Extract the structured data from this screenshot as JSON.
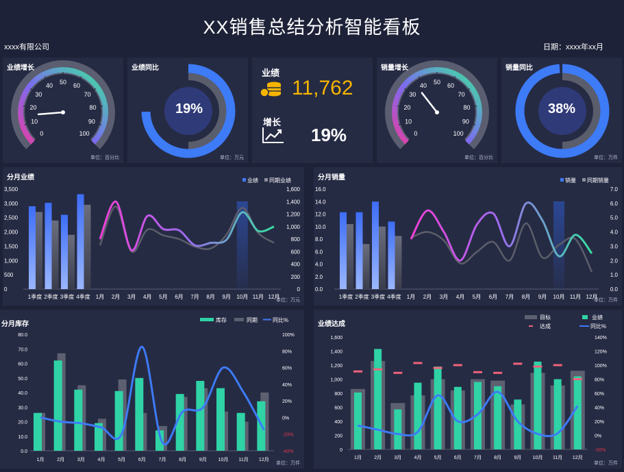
{
  "header": {
    "title": "XX销售总结分析智能看板",
    "company": "xxxx有限公司",
    "date": "日期：xxxx年xx月"
  },
  "colors": {
    "bg": "#1e2238",
    "panel": "#262b44",
    "blue": "#3d7bf7",
    "gray": "#5d6070",
    "teal": "#2fd3a6",
    "gold": "#f7b500",
    "pink": "#f0637a",
    "neg": "#e0364c"
  },
  "panels": {
    "gauge1": {
      "title": "业绩增长",
      "unit": "单位：百分比",
      "ticks": [
        "0",
        "10",
        "20",
        "30",
        "40",
        "50",
        "60",
        "70",
        "80",
        "90",
        "100"
      ],
      "value": 15
    },
    "ring1": {
      "title": "业绩同比",
      "unit": "单位：万元",
      "value_text": "19%",
      "fraction": 0.19
    },
    "kpi": {
      "label1": "业绩",
      "value1": "11,762",
      "label2": "增长",
      "value2": "19%"
    },
    "gauge2": {
      "title": "销量增长",
      "unit": "单位：百分比",
      "ticks": [
        "0",
        "10",
        "20",
        "30",
        "40",
        "50",
        "60",
        "70",
        "80",
        "90",
        "100"
      ],
      "value": 36
    },
    "ring2": {
      "title": "销量同比",
      "unit": "单位：万件",
      "value_text": "38%",
      "fraction": 0.38
    },
    "monthly_perf": {
      "title": "分月业绩",
      "unit": "单位：万元",
      "legend": [
        "业绩",
        "同期业绩"
      ]
    },
    "monthly_sales": {
      "title": "分月销量",
      "unit": "单位：万件",
      "legend": [
        "销量",
        "同期销量"
      ]
    },
    "inventory": {
      "title": "分月库存",
      "unit": "单位：万件",
      "legend": [
        "库存",
        "同期",
        "同比%"
      ]
    },
    "achievement": {
      "title": "业绩达成",
      "unit": "单位：万件",
      "legend": [
        "目标",
        "业绩",
        "达成",
        "同比%"
      ]
    }
  },
  "chart_data": [
    {
      "type": "bar",
      "id": "perf_quarter",
      "categories": [
        "1季度",
        "2季度",
        "3季度",
        "4季度"
      ],
      "series": [
        {
          "name": "业绩",
          "values": [
            2900,
            3020,
            2600,
            3320
          ]
        },
        {
          "name": "同期业绩",
          "values": [
            2700,
            2400,
            1900,
            2950
          ]
        }
      ],
      "y_ticks": [
        "0",
        "500",
        "1,000",
        "1,500",
        "2,000",
        "2,500",
        "3,000",
        "3,500"
      ],
      "ylim": [
        0,
        3500
      ]
    },
    {
      "type": "line",
      "id": "perf_month",
      "categories": [
        "1月",
        "2月",
        "3月",
        "4月",
        "5月",
        "6月",
        "7月",
        "8月",
        "9月",
        "10月",
        "11月",
        "12月"
      ],
      "series": [
        {
          "name": "业绩",
          "values": [
            800,
            1400,
            620,
            1170,
            960,
            940,
            700,
            740,
            790,
            1230,
            930,
            1000
          ]
        },
        {
          "name": "同期业绩",
          "values": [
            700,
            1320,
            600,
            950,
            860,
            800,
            680,
            650,
            870,
            1300,
            900,
            740
          ]
        }
      ],
      "y2_ticks": [
        "0",
        "200",
        "400",
        "600",
        "800",
        "1,000",
        "1,200",
        "1,400",
        "1,600"
      ],
      "y2lim": [
        0,
        1600
      ]
    },
    {
      "type": "bar",
      "id": "sales_quarter",
      "categories": [
        "1季度",
        "2季度",
        "3季度",
        "4季度"
      ],
      "series": [
        {
          "name": "销量",
          "values": [
            12.3,
            12.3,
            14.0,
            10.8
          ]
        },
        {
          "name": "同期销量",
          "values": [
            10.4,
            7.2,
            10.0,
            8.5
          ]
        }
      ],
      "y_ticks": [
        "0.0",
        "2.0",
        "4.0",
        "6.0",
        "8.0",
        "10.0",
        "12.0",
        "14.0",
        "16.0"
      ],
      "ylim": [
        0,
        16
      ]
    },
    {
      "type": "line",
      "id": "sales_month",
      "categories": [
        "1月",
        "2月",
        "3月",
        "4月",
        "5月",
        "6月",
        "7月",
        "8月",
        "9月",
        "10月",
        "11月",
        "12月"
      ],
      "series": [
        {
          "name": "销量",
          "values": [
            3.5,
            5.5,
            4.0,
            2.0,
            4.5,
            5.3,
            3.0,
            6.0,
            4.8,
            2.3,
            3.8,
            2.5
          ]
        },
        {
          "name": "同期销量",
          "values": [
            3.6,
            4.0,
            3.4,
            1.8,
            2.6,
            3.3,
            2.0,
            4.6,
            2.2,
            3.1,
            3.5,
            1.2
          ]
        }
      ],
      "y2_ticks": [
        "0.0",
        "1.0",
        "2.0",
        "3.0",
        "4.0",
        "5.0",
        "6.0",
        "7.0"
      ],
      "y2lim": [
        0,
        7
      ]
    },
    {
      "type": "bar",
      "id": "inventory",
      "categories": [
        "1月",
        "2月",
        "3月",
        "4月",
        "5月",
        "6月",
        "7月",
        "8月",
        "9月",
        "10月",
        "11月",
        "12月"
      ],
      "series": [
        {
          "name": "库存",
          "values": [
            26,
            62,
            42,
            19,
            41,
            50,
            14,
            39,
            48,
            43,
            26,
            34
          ]
        },
        {
          "name": "同期",
          "values": [
            26,
            67,
            45,
            22,
            49,
            26,
            17,
            37,
            43,
            27,
            20,
            40
          ]
        },
        {
          "name": "同比%",
          "values": [
            0,
            -5,
            -7,
            -12,
            -20,
            85,
            -30,
            7,
            12,
            60,
            30,
            -15
          ]
        }
      ],
      "y_ticks": [
        "0.0",
        "10.0",
        "20.0",
        "30.0",
        "40.0",
        "50.0",
        "60.0",
        "70.0",
        "80.0"
      ],
      "ylim": [
        0,
        80
      ],
      "y2_ticks": [
        "-20%",
        "0%",
        "20%",
        "40%",
        "60%",
        "80%",
        "100%"
      ],
      "y2lim": [
        -40,
        100
      ]
    },
    {
      "type": "bar",
      "id": "achievement",
      "categories": [
        "1月",
        "2月",
        "3月",
        "4月",
        "5月",
        "6月",
        "7月",
        "8月",
        "9月",
        "10月",
        "11月",
        "12月"
      ],
      "series": [
        {
          "name": "目标",
          "values": [
            860,
            1260,
            660,
            770,
            1000,
            840,
            1000,
            980,
            640,
            1090,
            910,
            1120
          ]
        },
        {
          "name": "业绩",
          "values": [
            810,
            1430,
            570,
            950,
            1180,
            890,
            960,
            900,
            710,
            1250,
            1000,
            1040
          ]
        },
        {
          "name": "达成",
          "values": [
            1110,
            1140,
            1090,
            1230,
            1160,
            1200,
            1100,
            1090,
            1220,
            1180,
            1200,
            1000
          ]
        },
        {
          "name": "同比%",
          "values": [
            14,
            8,
            2,
            5,
            57,
            20,
            30,
            62,
            20,
            2,
            3,
            42
          ]
        }
      ],
      "y_ticks": [
        "0",
        "200",
        "400",
        "600",
        "800",
        "1,000",
        "1,200",
        "1,400",
        "1,600"
      ],
      "ylim": [
        0,
        1600
      ],
      "y2_ticks": [
        "-20%",
        "0%",
        "20%",
        "40%",
        "60%",
        "80%",
        "100%",
        "120%",
        "140%"
      ],
      "y2lim": [
        -20,
        140
      ]
    }
  ]
}
